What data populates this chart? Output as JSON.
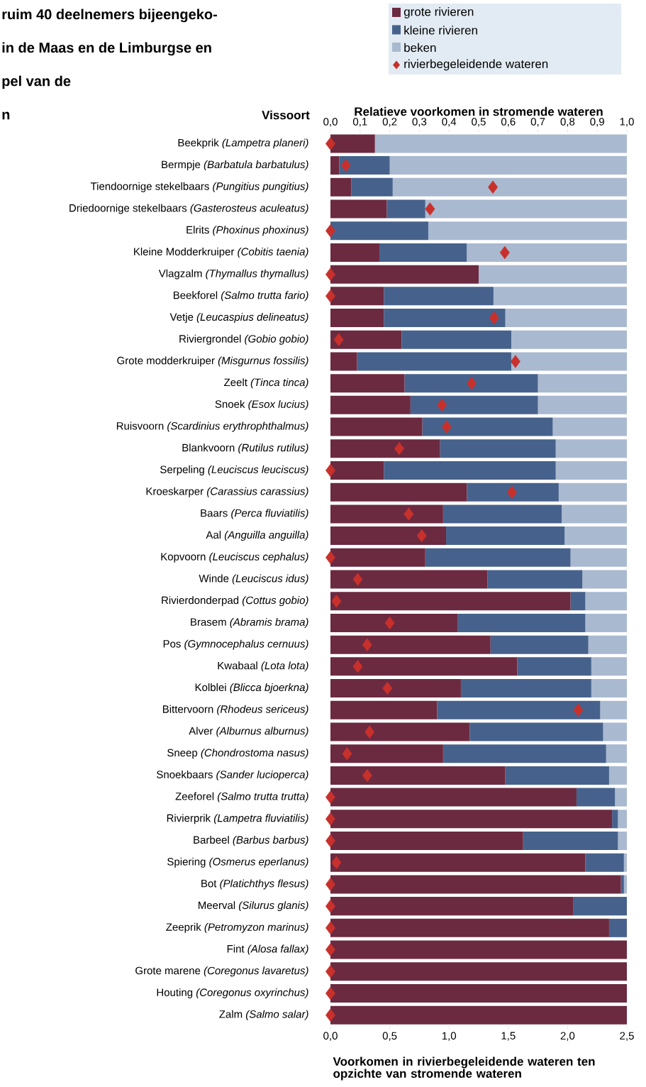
{
  "chart_data": {
    "type": "bar",
    "orientation": "horizontal",
    "stacked": true,
    "annotations": [
      "ruim 40 deelnemers bijeengeko-",
      "in de Maas en de Limburgse en",
      "pel van de",
      "n"
    ],
    "xlabel": "Relatieve voorkomen in stromende wateren",
    "x2label": "Voorkomen in rivierbegeleidende wateren ten opzichte van stromende wateren",
    "ylabel": "Vissoort",
    "legend": "top right",
    "categories": [
      "Beekprik *(Lampetra planeri)*",
      "Bermpje *(Barbatula barbatulus)*",
      "Tiendoornige stekelbaars *(Pungitius pungitius)*",
      "Driedoornige stekelbaars *(Gasterosteus aculeatus)*",
      "Elrits *(Phoxinus phoxinus)*",
      "Kleine Modderkruiper *(Cobitis taenia)*",
      "Vlagzalm *(Thymallus thymallus)*",
      "Beekforel *(Salmo trutta fario)*",
      "Vetje *(Leucaspius delineatus)*",
      "Riviergrondel *(Gobio gobio)*",
      "Grote modderkruiper *(Misgurnus fossilis)*",
      "Zeelt *(Tinca tinca)*",
      "Snoek *(Esox lucius)*",
      "Ruisvoorn *(Scardinius erythrophthalmus)*",
      "Blankvoorn *(Rutilus rutilus)*",
      "Serpeling *(Leuciscus leuciscus)*",
      "Kroeskarper *(Carassius carassius)*",
      "Baars *(Perca fluviatilis)*",
      "Aal *(Anguilla anguilla)*",
      "Kopvoorn *(Leuciscus cephalus)*",
      "Winde *(Leuciscus idus)*",
      "Rivierdonderpad *(Cottus gobio)*",
      "Brasem *(Abramis brama)*",
      "Pos *(Gymnocephalus cernuus)*",
      "Kwabaal *(Lota lota)*",
      "Kolblei *(Blicca bjoerkna)*",
      "Bittervoorn *(Rhodeus sericeus)*",
      "Alver *(Alburnus alburnus)*",
      "Sneep *(Chondrostoma nasus)*",
      "Snoekbaars *(Sander lucioperca)*",
      "Zeeforel *(Salmo trutta trutta)*",
      "Rivierprik *(Lampetra fluviatilis)*",
      "Barbeel *(Barbus barbus)*",
      "Spiering *(Osmerus eperlanus)*",
      "Bot *(Platichthys flesus)*",
      "Meerval *(Silurus glanis)*",
      "Zeeprik *(Petromyzon marinus)*",
      "Fint *(Alosa fallax)*",
      "Grote marene *(Coregonus lavaretus)*",
      "Houting *(Coregonus oxyrinchus)*",
      "Zalm *(Salmo salar)*"
    ],
    "xlim": [
      0,
      1
    ],
    "xticks": [
      {
        "value": 0,
        "label": "0,0"
      },
      {
        "value": 0.1,
        "label": "0,1"
      },
      {
        "value": 0.2,
        "label": "0,2"
      },
      {
        "value": 0.3,
        "label": "0,3"
      },
      {
        "value": 0.4,
        "label": "0,4"
      },
      {
        "value": 0.5,
        "label": "0,5"
      },
      {
        "value": 0.6,
        "label": "0,6"
      },
      {
        "value": 0.7,
        "label": "0,7"
      },
      {
        "value": 0.8,
        "label": "0,8"
      },
      {
        "value": 0.9,
        "label": "0,9"
      },
      {
        "value": 1,
        "label": "1,0"
      }
    ],
    "x2lim": [
      0,
      2.5
    ],
    "x2ticks": [
      {
        "value": 0,
        "label": "0,0"
      },
      {
        "value": 0.5,
        "label": "0,5"
      },
      {
        "value": 1,
        "label": "1,0"
      },
      {
        "value": 1.5,
        "label": "1,5"
      },
      {
        "value": 2,
        "label": "2,0"
      },
      {
        "value": 2.5,
        "label": "2,5"
      }
    ],
    "series": [
      {
        "name": "grote rivieren",
        "color": "#6b2a40",
        "values": [
          0.15,
          0.03,
          0.07,
          0.19,
          0,
          0.165,
          0.5,
          0.18,
          0.18,
          0.24,
          0.09,
          0.25,
          0.27,
          0.31,
          0.37,
          0.18,
          0.46,
          0.38,
          0.39,
          0.32,
          0.53,
          0.81,
          0.43,
          0.54,
          0.63,
          0.44,
          0.36,
          0.47,
          0.38,
          0.59,
          0.83,
          0.95,
          0.65,
          0.86,
          0.98,
          0.82,
          0.94,
          1,
          1,
          1,
          1
        ]
      },
      {
        "name": "kleine rivieren",
        "color": "#46628c",
        "values": [
          0,
          0.17,
          0.14,
          0.13,
          0.33,
          0.295,
          0,
          0.37,
          0.41,
          0.37,
          0.52,
          0.45,
          0.43,
          0.44,
          0.39,
          0.58,
          0.31,
          0.4,
          0.4,
          0.49,
          0.32,
          0.05,
          0.43,
          0.33,
          0.25,
          0.44,
          0.55,
          0.45,
          0.55,
          0.35,
          0.13,
          0.02,
          0.32,
          0.13,
          0.01,
          0.18,
          0.06,
          0,
          0,
          0,
          0
        ]
      },
      {
        "name": "beken",
        "color": "#a9b9d0",
        "values": [
          0.85,
          0.8,
          0.79,
          0.68,
          0.67,
          0.54,
          0.5,
          0.45,
          0.41,
          0.39,
          0.39,
          0.3,
          0.3,
          0.25,
          0.24,
          0.24,
          0.23,
          0.22,
          0.21,
          0.19,
          0.15,
          0.14,
          0.14,
          0.13,
          0.12,
          0.12,
          0.09,
          0.08,
          0.07,
          0.06,
          0.04,
          0.03,
          0.03,
          0.01,
          0.01,
          0,
          0,
          0,
          0,
          0,
          0
        ]
      },
      {
        "name": "rivierbegeleidende wateren",
        "type": "scatter",
        "axis": "x2",
        "marker": "diamond",
        "color": "#c8302c",
        "values": [
          0,
          0.13,
          1.37,
          0.84,
          0,
          1.47,
          0,
          0,
          1.38,
          0.07,
          1.56,
          1.19,
          0.94,
          0.98,
          0.58,
          0,
          1.53,
          0.66,
          0.77,
          0,
          0.23,
          0.05,
          0.5,
          0.31,
          0.23,
          0.48,
          2.09,
          0.33,
          0.14,
          0.31,
          0,
          0,
          0,
          0.05,
          0,
          0,
          0,
          0,
          0,
          0,
          0
        ]
      }
    ]
  }
}
